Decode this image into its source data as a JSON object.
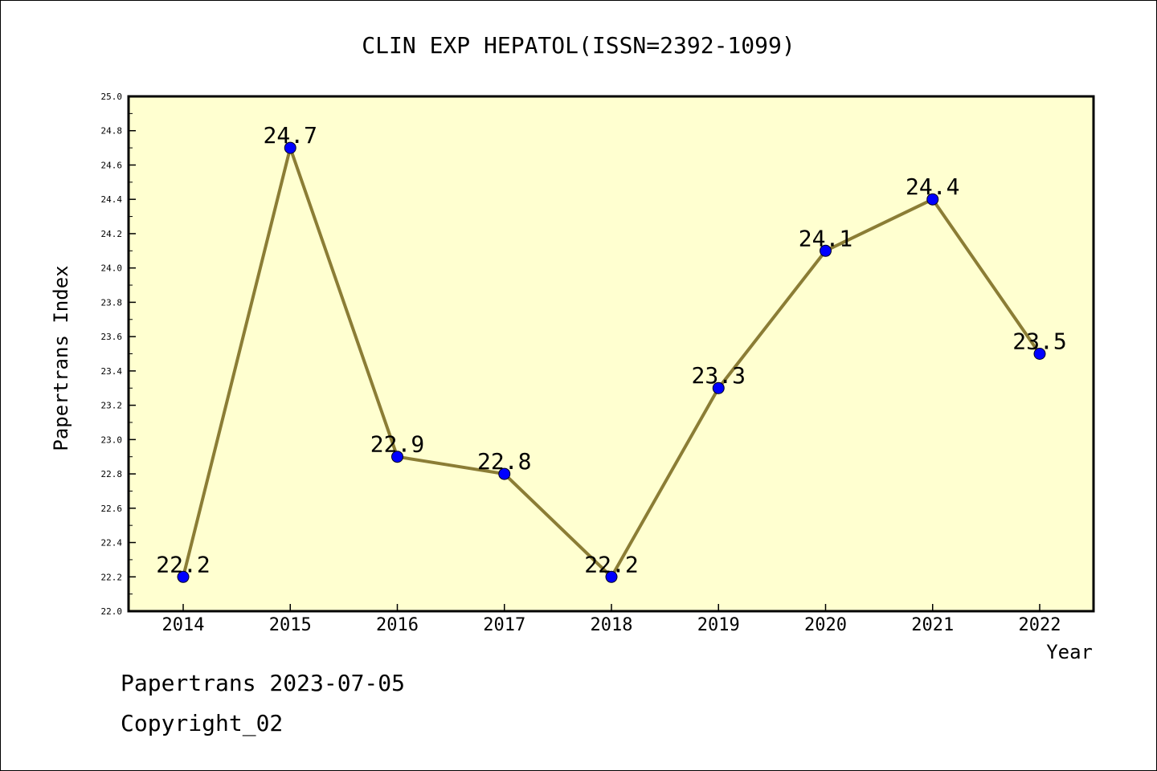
{
  "chart_data": {
    "type": "line",
    "title": "CLIN EXP HEPATOL(ISSN=2392-1099)",
    "xlabel": "Year",
    "ylabel": "Papertrans Index",
    "categories": [
      "2014",
      "2015",
      "2016",
      "2017",
      "2018",
      "2019",
      "2020",
      "2021",
      "2022"
    ],
    "series": [
      {
        "values": [
          22.2,
          24.7,
          22.9,
          22.8,
          22.2,
          23.3,
          24.1,
          24.4,
          23.5
        ],
        "data_labels": [
          "22.2",
          "24.7",
          "22.9",
          "22.8",
          "22.2",
          "23.3",
          "24.1",
          "24.4",
          "23.5"
        ]
      }
    ],
    "ylim": [
      22.0,
      25.0
    ],
    "yticks": [
      "22.0",
      "22.2",
      "22.4",
      "22.6",
      "22.8",
      "23.0",
      "23.2",
      "23.4",
      "23.6",
      "23.8",
      "24.0",
      "24.2",
      "24.4",
      "24.6",
      "24.8",
      "25.0"
    ],
    "grid": false,
    "colors": {
      "plot_background": "#ffffd0",
      "line": "#8b7d35",
      "marker": "#0000ff"
    }
  },
  "footer": {
    "line1": "Papertrans 2023-07-05",
    "line2": "Copyright_02"
  }
}
